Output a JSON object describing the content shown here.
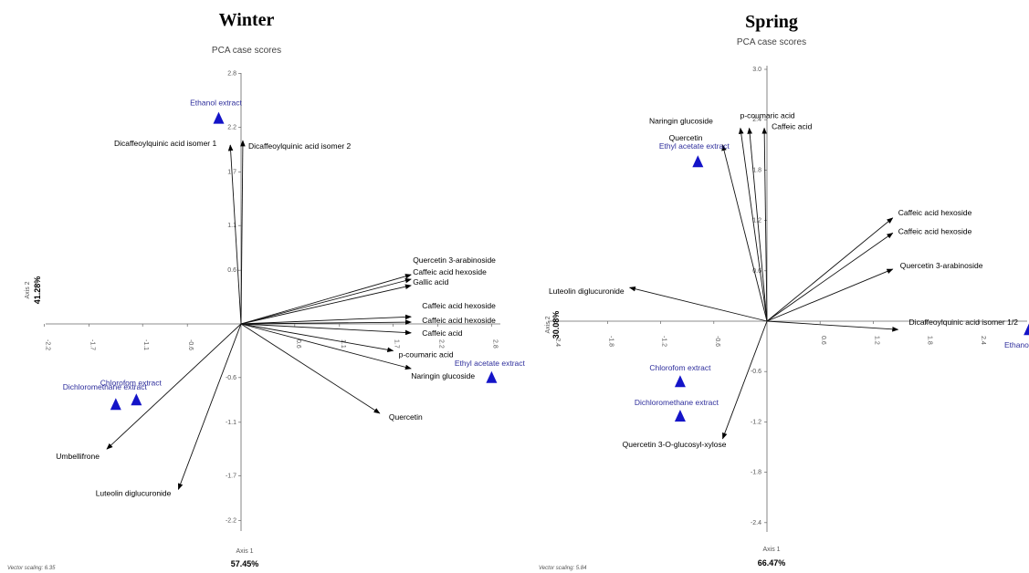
{
  "chart_data": [
    {
      "type": "scatter",
      "season_title": "Winter",
      "title": "PCA case scores",
      "xlabel": "Axis 1",
      "ylabel": "Axis 2",
      "x_variance": "57.45%",
      "y_variance": "41.28%",
      "vector_scaling": "Vector scaling: 6.35",
      "xlim": [
        -2.3,
        3.0
      ],
      "ylim": [
        -2.3,
        2.9
      ],
      "x_ticks": [
        "-2.2",
        "-1.7",
        "-1.1",
        "-0.6",
        "0.6",
        "1.1",
        "1.7",
        "2.2",
        "2.8"
      ],
      "y_ticks": [
        "2.8",
        "2.2",
        "1.7",
        "1.1",
        "0.6",
        "-0.6",
        "-1.1",
        "-1.7",
        "-2.2"
      ],
      "vectors": [
        {
          "label": "Dicaffeoylquinic acid isomer 1",
          "x": -0.12,
          "y": 2.0
        },
        {
          "label": "Dicaffeoylquinic acid isomer 2",
          "x": 0.02,
          "y": 2.05
        },
        {
          "label": "Quercetin 3-arabinoside",
          "x": 1.9,
          "y": 0.55
        },
        {
          "label": "Caffeic acid hexoside",
          "x": 1.9,
          "y": 0.5
        },
        {
          "label": "Gallic acid",
          "x": 1.9,
          "y": 0.43
        },
        {
          "label": "Caffeic acid hexoside",
          "x": 1.9,
          "y": 0.08
        },
        {
          "label": "Caffeic acid hexoside",
          "x": 1.9,
          "y": 0.02
        },
        {
          "label": "Caffeic acid",
          "x": 1.9,
          "y": -0.1
        },
        {
          "label": "p-coumaric acid",
          "x": 1.7,
          "y": -0.3
        },
        {
          "label": "Naringin glucoside",
          "x": 1.9,
          "y": -0.5
        },
        {
          "label": "Quercetin",
          "x": 1.55,
          "y": -1.0
        },
        {
          "label": "Umbellifrone",
          "x": -1.5,
          "y": -1.4
        },
        {
          "label": "Luteolin diglucuronide",
          "x": -0.7,
          "y": -1.85
        }
      ],
      "cases": [
        {
          "label": "Ethanol extract",
          "x": -0.25,
          "y": 2.3
        },
        {
          "label": "Ethyl acetate extract",
          "x": 2.8,
          "y": -0.6
        },
        {
          "label": "Chlorofom extract",
          "x": -1.17,
          "y": -0.85
        },
        {
          "label": "Dichloromethane extract",
          "x": -1.4,
          "y": -0.9
        }
      ]
    },
    {
      "type": "scatter",
      "season_title": "Spring",
      "title": "PCA case scores",
      "xlabel": "Axis 1",
      "ylabel": "Axis 2",
      "x_variance": "66.47%",
      "y_variance": "30.08%",
      "vector_scaling": "Vector scaling: 5.84",
      "xlim": [
        -2.6,
        3.2
      ],
      "ylim": [
        -2.5,
        3.1
      ],
      "x_ticks": [
        "-2.4",
        "-1.8",
        "-1.2",
        "-0.6",
        "0.6",
        "1.2",
        "1.8",
        "2.4",
        "3"
      ],
      "y_ticks": [
        "3.0",
        "2.4",
        "1.8",
        "1.2",
        "0.6",
        "-0.6",
        "-1.2",
        "-1.8",
        "-2.4"
      ],
      "vectors": [
        {
          "label": "p-coumaric acid",
          "x": -0.2,
          "y": 2.3
        },
        {
          "label": "Caffeic acid",
          "x": -0.03,
          "y": 2.3
        },
        {
          "label": "Naringin glucoside",
          "x": -0.3,
          "y": 2.3
        },
        {
          "label": "Quercetin",
          "x": -0.5,
          "y": 2.1
        },
        {
          "label": "Caffeic acid hexoside",
          "x": 1.42,
          "y": 1.23
        },
        {
          "label": "Caffeic acid hexoside",
          "x": 1.42,
          "y": 1.05
        },
        {
          "label": "Quercetin 3-arabinoside",
          "x": 1.42,
          "y": 0.62
        },
        {
          "label": "Luteolin diglucuronide",
          "x": -1.55,
          "y": 0.4
        },
        {
          "label": "Dicaffeoylquinic acid isomer 1/2",
          "x": 1.48,
          "y": -0.1
        },
        {
          "label": "Quercetin 3-O-glucosyl-xylose",
          "x": -0.5,
          "y": -1.4
        }
      ],
      "cases": [
        {
          "label": "Ethyl acetate extract",
          "x": -0.78,
          "y": 1.9
        },
        {
          "label": "Ethanol extrac",
          "x": 2.96,
          "y": -0.1
        },
        {
          "label": "Chlorofom extract",
          "x": -0.98,
          "y": -0.72
        },
        {
          "label": "Dichloromethane extract",
          "x": -0.98,
          "y": -1.13
        }
      ]
    }
  ]
}
